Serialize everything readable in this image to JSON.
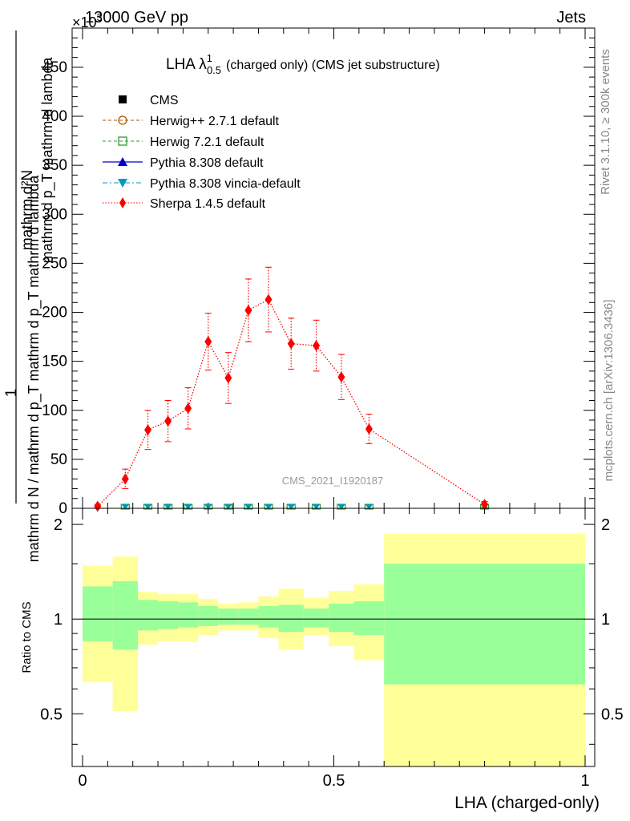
{
  "header": {
    "left": "13000 GeV pp",
    "right": "Jets",
    "exponent": "×10",
    "exponent_power": "3"
  },
  "side_labels": {
    "rivet": "Rivet 3.1.10, ≥ 300k events",
    "mcplots": "mcplots.cern.ch [arXiv:1306.3436]"
  },
  "watermark": "CMS_2021_I1920187",
  "colors": {
    "sherpa": "#ff0000",
    "herwigpp": "#aa5500",
    "herwig7": "#339933",
    "pythia": "#0000cc",
    "vincia": "#0099bb",
    "band_outer": "#ffff99",
    "band_inner": "#99ff99"
  },
  "chart_data": [
    {
      "type": "line",
      "title_main": "LHA λ",
      "title_sup": "1",
      "title_sub": "0.5",
      "title_rest": "(charged only) (CMS jet substructure)",
      "ylabel": "1/(mathrm d N / mathrm d p_T mathrm d p_T mathrm d lambda) · mathrm d²N / (mathrm d p_T mathrm d lambda)",
      "ylabel_num": "mathrm d²N",
      "ylabel_num_lines": [
        "mathrm d²N",
        "mathrm d p_T mathrm d lambda"
      ],
      "ylabel_den_lines": [
        "1",
        "mathrm d N / mathrm d p_T mathrm d p_T mathrm d lambda"
      ],
      "xlim": [
        0,
        1
      ],
      "ylim": [
        0,
        490
      ],
      "y_scale_note": "×10³",
      "yticks": [
        0,
        50,
        100,
        150,
        200,
        250,
        300,
        350,
        400,
        450
      ],
      "ytick_labels": [
        "0",
        "50",
        "100",
        "150",
        "200",
        "250",
        "300",
        "350",
        "400",
        "450"
      ],
      "legend": [
        {
          "name": "CMS",
          "style": "black filled square"
        },
        {
          "name": "Herwig++ 2.7.1 default",
          "style": "brown dashed, open circle"
        },
        {
          "name": "Herwig 7.2.1 default",
          "style": "green dashed, open square"
        },
        {
          "name": "Pythia 8.308 default",
          "style": "blue solid, filled triangle"
        },
        {
          "name": "Pythia 8.308 vincia-default",
          "style": "teal dash-dot, inverted triangle"
        },
        {
          "name": "Sherpa 1.4.5 default",
          "style": "red dotted, diamond"
        }
      ],
      "series": [
        {
          "name": "Sherpa 1.4.5 default",
          "x": [
            0.03,
            0.085,
            0.13,
            0.17,
            0.21,
            0.25,
            0.29,
            0.33,
            0.37,
            0.415,
            0.465,
            0.515,
            0.57,
            0.8
          ],
          "y": [
            2,
            30,
            80,
            89,
            102,
            170,
            133,
            202,
            213,
            168,
            166,
            134,
            81,
            4
          ],
          "err": [
            2,
            10,
            20,
            21,
            21,
            29,
            26,
            32,
            33,
            26,
            26,
            23,
            15,
            3
          ]
        },
        {
          "name": "Other generators (near zero)",
          "x": [
            0.085,
            0.13,
            0.17,
            0.21,
            0.25,
            0.29,
            0.33,
            0.37,
            0.415,
            0.465,
            0.515,
            0.57,
            0.8
          ],
          "y": [
            0,
            0,
            0,
            0,
            0,
            0,
            0,
            0,
            0,
            0,
            0,
            0,
            0
          ]
        }
      ]
    },
    {
      "type": "area",
      "ylabel": "Ratio to CMS",
      "xlabel": "LHA (charged-only)",
      "xlim": [
        0,
        1
      ],
      "ylim": [
        0.34,
        2.25
      ],
      "xticks": [
        0,
        0.5,
        1
      ],
      "xtick_labels": [
        "0",
        "0.5",
        "1"
      ],
      "yticks": [
        0.5,
        1,
        2
      ],
      "ytick_labels": [
        "0.5",
        "1",
        "2"
      ],
      "bins": [
        {
          "lo": 0.0,
          "hi": 0.06,
          "outer_lo": 0.63,
          "outer_hi": 1.48,
          "inner_lo": 0.85,
          "inner_hi": 1.27
        },
        {
          "lo": 0.06,
          "hi": 0.11,
          "outer_lo": 0.51,
          "outer_hi": 1.58,
          "inner_lo": 0.8,
          "inner_hi": 1.32
        },
        {
          "lo": 0.11,
          "hi": 0.15,
          "outer_lo": 0.83,
          "outer_hi": 1.22,
          "inner_lo": 0.92,
          "inner_hi": 1.15
        },
        {
          "lo": 0.15,
          "hi": 0.19,
          "outer_lo": 0.85,
          "outer_hi": 1.2,
          "inner_lo": 0.93,
          "inner_hi": 1.14
        },
        {
          "lo": 0.19,
          "hi": 0.23,
          "outer_lo": 0.85,
          "outer_hi": 1.2,
          "inner_lo": 0.94,
          "inner_hi": 1.13
        },
        {
          "lo": 0.23,
          "hi": 0.27,
          "outer_lo": 0.89,
          "outer_hi": 1.16,
          "inner_lo": 0.95,
          "inner_hi": 1.1
        },
        {
          "lo": 0.27,
          "hi": 0.31,
          "outer_lo": 0.92,
          "outer_hi": 1.12,
          "inner_lo": 0.96,
          "inner_hi": 1.08
        },
        {
          "lo": 0.31,
          "hi": 0.35,
          "outer_lo": 0.92,
          "outer_hi": 1.13,
          "inner_lo": 0.96,
          "inner_hi": 1.08
        },
        {
          "lo": 0.35,
          "hi": 0.39,
          "outer_lo": 0.87,
          "outer_hi": 1.18,
          "inner_lo": 0.94,
          "inner_hi": 1.1
        },
        {
          "lo": 0.39,
          "hi": 0.44,
          "outer_lo": 0.8,
          "outer_hi": 1.25,
          "inner_lo": 0.91,
          "inner_hi": 1.11
        },
        {
          "lo": 0.44,
          "hi": 0.49,
          "outer_lo": 0.89,
          "outer_hi": 1.17,
          "inner_lo": 0.94,
          "inner_hi": 1.08
        },
        {
          "lo": 0.49,
          "hi": 0.54,
          "outer_lo": 0.82,
          "outer_hi": 1.23,
          "inner_lo": 0.91,
          "inner_hi": 1.12
        },
        {
          "lo": 0.54,
          "hi": 0.6,
          "outer_lo": 0.74,
          "outer_hi": 1.29,
          "inner_lo": 0.89,
          "inner_hi": 1.14
        },
        {
          "lo": 0.6,
          "hi": 1.0,
          "outer_lo": 0.34,
          "outer_hi": 1.87,
          "inner_lo": 0.62,
          "inner_hi": 1.5
        }
      ]
    }
  ]
}
